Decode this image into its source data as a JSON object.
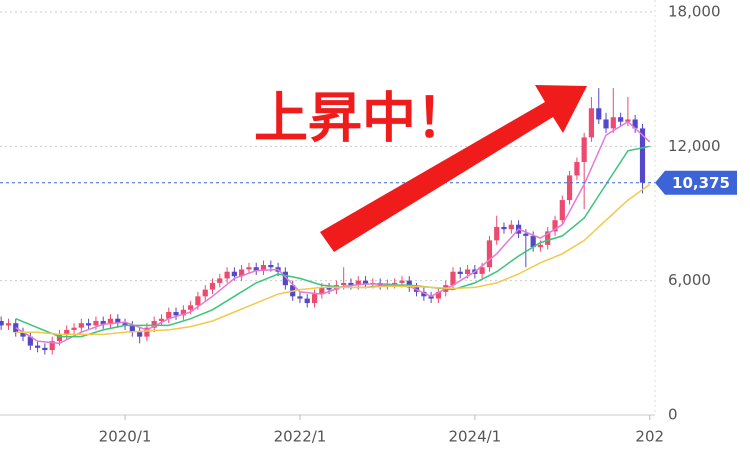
{
  "chart_data": {
    "type": "candlestick",
    "annotation": "上昇中！",
    "x": [
      2018.583,
      2018.667,
      2018.75,
      2018.833,
      2018.917,
      2019.0,
      2019.083,
      2019.167,
      2019.25,
      2019.333,
      2019.417,
      2019.5,
      2019.583,
      2019.667,
      2019.75,
      2019.833,
      2019.917,
      2020.0,
      2020.083,
      2020.167,
      2020.25,
      2020.333,
      2020.417,
      2020.5,
      2020.583,
      2020.667,
      2020.75,
      2020.833,
      2020.917,
      2021.0,
      2021.083,
      2021.167,
      2021.25,
      2021.333,
      2021.417,
      2021.5,
      2021.583,
      2021.667,
      2021.75,
      2021.833,
      2021.917,
      2022.0,
      2022.083,
      2022.167,
      2022.25,
      2022.333,
      2022.417,
      2022.5,
      2022.583,
      2022.667,
      2022.75,
      2022.833,
      2022.917,
      2023.0,
      2023.083,
      2023.167,
      2023.25,
      2023.333,
      2023.417,
      2023.5,
      2023.583,
      2023.667,
      2023.75,
      2023.833,
      2023.917,
      2024.0,
      2024.083,
      2024.167,
      2024.25,
      2024.333,
      2024.417,
      2024.5,
      2024.583,
      2024.667,
      2024.75,
      2024.833,
      2024.917,
      2025.0,
      2025.083,
      2025.167,
      2025.25,
      2025.333,
      2025.417,
      2025.5,
      2025.583,
      2025.667,
      2025.75,
      2025.833,
      2025.917
    ],
    "open": [
      4200,
      4000,
      4100,
      3700,
      3500,
      3100,
      3000,
      2900,
      3300,
      3600,
      3800,
      3900,
      4100,
      4000,
      4200,
      4050,
      4300,
      4100,
      4000,
      3700,
      3500,
      3900,
      4200,
      4300,
      4600,
      4450,
      4700,
      4900,
      5300,
      5600,
      5900,
      6100,
      6400,
      6200,
      6500,
      6600,
      6450,
      6700,
      6600,
      6400,
      5800,
      5300,
      5200,
      5000,
      5400,
      5700,
      5600,
      5800,
      5900,
      5800,
      6000,
      5850,
      5900,
      5800,
      5850,
      5900,
      6000,
      5700,
      5500,
      5300,
      5200,
      5500,
      5800,
      6400,
      6300,
      6500,
      6300,
      6600,
      7800,
      8400,
      8300,
      8500,
      8100,
      8000,
      7500,
      7600,
      8200,
      8700,
      9600,
      10700,
      11300,
      12400,
      13700,
      13200,
      12800,
      13300,
      13100,
      13200,
      12800
    ],
    "high": [
      4400,
      4300,
      4300,
      3900,
      3700,
      3300,
      3200,
      3500,
      3800,
      4000,
      4100,
      4300,
      4300,
      4400,
      4400,
      4500,
      4500,
      4300,
      4200,
      3900,
      4100,
      4400,
      4500,
      4800,
      4800,
      4900,
      5100,
      5500,
      5800,
      6100,
      6300,
      6600,
      6600,
      6700,
      6800,
      6800,
      6900,
      6900,
      6800,
      6600,
      6000,
      5500,
      5400,
      5600,
      5900,
      5900,
      6000,
      6600,
      6100,
      6200,
      6200,
      6100,
      6100,
      6050,
      6100,
      6200,
      6200,
      5900,
      5700,
      5500,
      5700,
      6000,
      6600,
      6600,
      6700,
      6700,
      6800,
      8000,
      8900,
      8600,
      8700,
      8700,
      8300,
      8200,
      7800,
      8400,
      8900,
      9800,
      10900,
      11500,
      12600,
      14200,
      14600,
      13500,
      14600,
      13500,
      14200,
      13400,
      13000
    ],
    "low": [
      3800,
      3800,
      3500,
      3300,
      2900,
      2800,
      2700,
      2700,
      3100,
      3400,
      3600,
      3700,
      3800,
      3800,
      3850,
      3850,
      3900,
      3800,
      3500,
      3200,
      3300,
      3700,
      4000,
      4100,
      4250,
      4250,
      4500,
      4700,
      5100,
      5400,
      5700,
      5900,
      6000,
      6000,
      6300,
      6250,
      6250,
      6400,
      6200,
      5600,
      5100,
      5000,
      4800,
      4800,
      5200,
      5400,
      5400,
      5600,
      5600,
      5600,
      5650,
      5650,
      5600,
      5600,
      5650,
      5700,
      5500,
      5300,
      5100,
      5000,
      5000,
      5300,
      5600,
      6100,
      6100,
      6100,
      6100,
      6400,
      7600,
      8100,
      8100,
      7900,
      6600,
      7300,
      7300,
      7400,
      8000,
      8500,
      9400,
      10500,
      9200,
      12200,
      13000,
      12600,
      12600,
      12900,
      12900,
      12600,
      9900
    ],
    "close": [
      4000,
      4100,
      3700,
      3500,
      3100,
      3000,
      2900,
      3300,
      3600,
      3800,
      3900,
      4100,
      4000,
      4200,
      4050,
      4300,
      4100,
      4000,
      3700,
      3500,
      3900,
      4200,
      4300,
      4600,
      4450,
      4700,
      4900,
      5300,
      5600,
      5900,
      6100,
      6400,
      6200,
      6500,
      6600,
      6450,
      6700,
      6600,
      6400,
      5800,
      5300,
      5200,
      5000,
      5400,
      5700,
      5600,
      5800,
      5900,
      5800,
      6000,
      5850,
      5900,
      5800,
      5850,
      5900,
      6000,
      5700,
      5500,
      5300,
      5200,
      5500,
      5800,
      6400,
      6300,
      6500,
      6300,
      6600,
      7800,
      8400,
      8300,
      8500,
      8100,
      8000,
      7500,
      7600,
      8200,
      8700,
      9600,
      10700,
      11300,
      12400,
      13700,
      13200,
      12800,
      13300,
      13100,
      13200,
      12800,
      10375
    ],
    "up_color": "#ec4a6e",
    "down_color": "#5548c8",
    "lines": [
      {
        "color": "#e47ad6",
        "x": [
          2018.75,
          2019,
          2019.25,
          2019.5,
          2019.75,
          2020,
          2020.25,
          2020.5,
          2020.75,
          2021,
          2021.25,
          2021.5,
          2021.75,
          2022,
          2022.25,
          2022.5,
          2022.75,
          2023,
          2023.25,
          2023.5,
          2023.75,
          2024,
          2024.25,
          2024.5,
          2024.75,
          2025,
          2025.25,
          2025.5,
          2025.75,
          2026
        ],
        "values": [
          3900,
          3300,
          3200,
          3700,
          4050,
          4150,
          3800,
          4300,
          4600,
          5300,
          6100,
          6450,
          6500,
          5500,
          5400,
          5750,
          5850,
          5850,
          5750,
          5300,
          5800,
          6400,
          7200,
          8300,
          7900,
          8500,
          10300,
          12500,
          13100,
          12200
        ]
      },
      {
        "color": "#3cc47a",
        "x": [
          2018.75,
          2019,
          2019.25,
          2019.5,
          2019.75,
          2020,
          2020.25,
          2020.5,
          2020.75,
          2021,
          2021.25,
          2021.5,
          2021.75,
          2022,
          2022.25,
          2022.5,
          2022.75,
          2023,
          2023.25,
          2023.5,
          2023.75,
          2024,
          2024.25,
          2024.5,
          2024.75,
          2025,
          2025.25,
          2025.5,
          2025.75,
          2026
        ],
        "values": [
          4300,
          3900,
          3500,
          3500,
          3800,
          4000,
          4000,
          4000,
          4300,
          4700,
          5300,
          5900,
          6300,
          6100,
          5800,
          5700,
          5700,
          5800,
          5800,
          5700,
          5600,
          5900,
          6400,
          7100,
          7700,
          8000,
          8800,
          10300,
          11800,
          12000
        ]
      },
      {
        "color": "#f2c94c",
        "x": [
          2018.75,
          2019,
          2019.25,
          2019.5,
          2019.75,
          2020,
          2020.25,
          2020.5,
          2020.75,
          2021,
          2021.25,
          2021.5,
          2021.75,
          2022,
          2022.25,
          2022.5,
          2022.75,
          2023,
          2023.25,
          2023.5,
          2023.75,
          2024,
          2024.25,
          2024.5,
          2024.75,
          2025,
          2025.25,
          2025.5,
          2025.75,
          2026
        ],
        "values": [
          3700,
          3700,
          3600,
          3600,
          3600,
          3700,
          3750,
          3800,
          3950,
          4200,
          4600,
          5000,
          5400,
          5600,
          5700,
          5700,
          5700,
          5750,
          5750,
          5700,
          5650,
          5700,
          5900,
          6300,
          6800,
          7200,
          7800,
          8700,
          9600,
          10300
        ]
      }
    ],
    "current_price": {
      "value": 10375,
      "label": "10,375"
    },
    "current_color": "#3c64d6",
    "xlim": [
      2018.57,
      2026.06
    ],
    "xticks": [
      {
        "value": 2020,
        "label": "2020/1"
      },
      {
        "value": 2022,
        "label": "2022/1"
      },
      {
        "value": 2024,
        "label": "2024/1"
      },
      {
        "value": 2026,
        "label": "202"
      }
    ],
    "ylim": [
      0,
      18000
    ],
    "yticks": [
      0,
      {
        "value": 6000,
        "label": "6,000"
      },
      {
        "value": 12000,
        "label": "12,000"
      },
      {
        "value": 18000,
        "label": "18,000"
      }
    ],
    "grid": true
  }
}
